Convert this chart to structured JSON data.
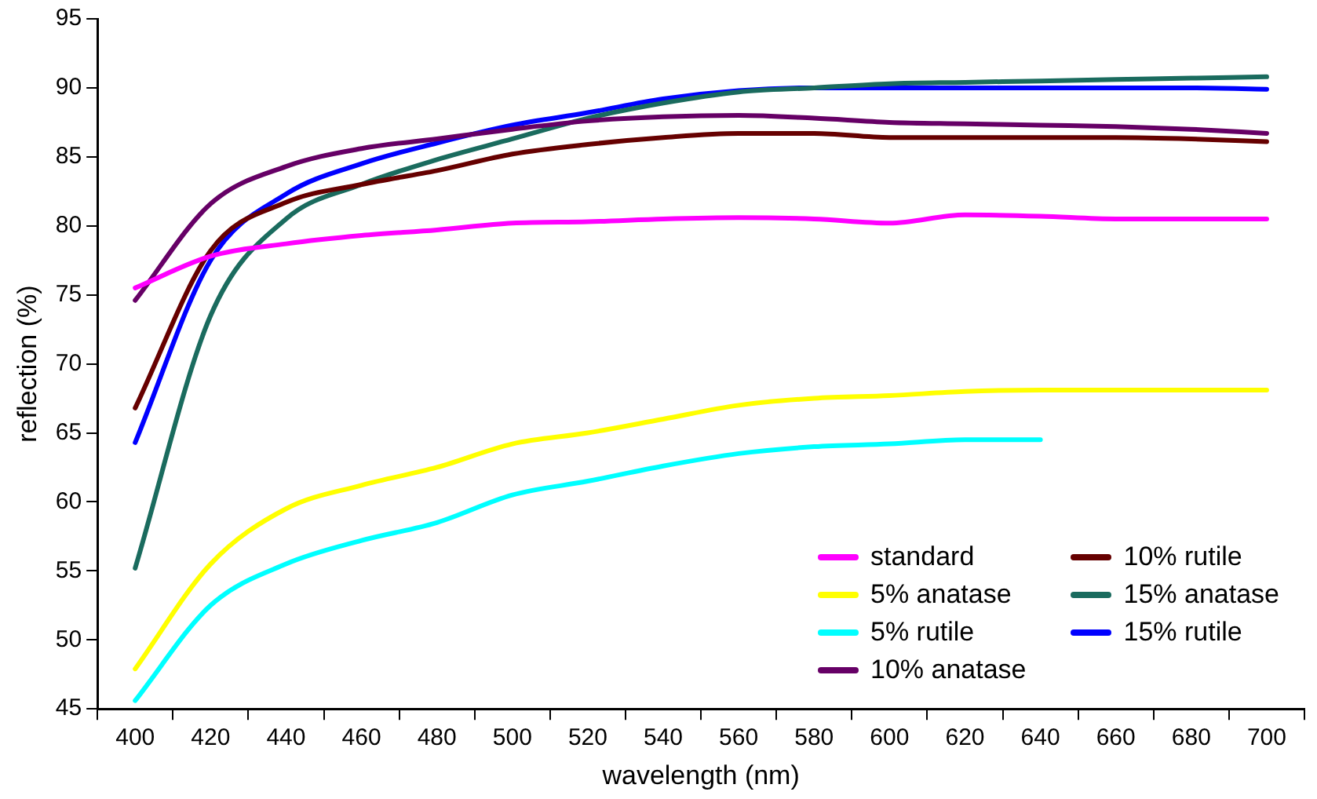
{
  "chart_data": {
    "type": "line",
    "xlabel": "wavelength (nm)",
    "ylabel": "reflection (%)",
    "categories": [
      "400",
      "420",
      "440",
      "460",
      "480",
      "500",
      "520",
      "540",
      "560",
      "580",
      "600",
      "620",
      "640",
      "660",
      "680",
      "700"
    ],
    "ylim": [
      45,
      95
    ],
    "yticks": [
      45,
      50,
      55,
      60,
      65,
      70,
      75,
      80,
      85,
      90,
      95
    ],
    "grid": false,
    "legend": "bottom right",
    "marker": "none",
    "line_style": "solid",
    "series": [
      {
        "name": "standard",
        "color": "#ff00ff",
        "values": [
          75.5,
          77.8,
          78.7,
          79.3,
          79.7,
          80.2,
          80.3,
          80.5,
          80.6,
          80.5,
          80.2,
          80.8,
          80.7,
          80.5,
          80.5,
          80.5
        ]
      },
      {
        "name": "5% anatase",
        "color": "#ffff00",
        "values": [
          47.9,
          55.5,
          59.5,
          61.2,
          62.5,
          64.2,
          65,
          66,
          67,
          67.5,
          67.7,
          68,
          68.1,
          68.1,
          68.1,
          68.1
        ]
      },
      {
        "name": "5% rutile",
        "color": "#00ffff",
        "values": [
          45.6,
          52.5,
          55.5,
          57.2,
          58.5,
          60.5,
          61.5,
          62.6,
          63.5,
          64,
          64.2,
          64.5,
          64.5,
          null,
          null,
          null
        ]
      },
      {
        "name": "10% anatase",
        "color": "#660066",
        "values": [
          74.6,
          81.6,
          84.3,
          85.6,
          86.3,
          87,
          87.6,
          87.9,
          88,
          87.8,
          87.5,
          87.4,
          87.3,
          87.2,
          87,
          86.7
        ]
      },
      {
        "name": "10% rutile",
        "color": "#660000",
        "values": [
          66.8,
          78.2,
          81.7,
          83,
          84,
          85.2,
          85.9,
          86.4,
          86.7,
          86.7,
          86.4,
          86.4,
          86.4,
          86.4,
          86.3,
          86.1
        ]
      },
      {
        "name": "15% anatase",
        "color": "#1a6b5e",
        "values": [
          55.2,
          73.5,
          80.5,
          83,
          84.8,
          86.3,
          87.8,
          88.9,
          89.7,
          90,
          90.3,
          90.4,
          90.5,
          90.6,
          90.7,
          90.8
        ]
      },
      {
        "name": "15% rutile",
        "color": "#0000ff",
        "values": [
          64.3,
          77.5,
          82.3,
          84.5,
          86,
          87.3,
          88.2,
          89.2,
          89.8,
          90,
          90,
          90,
          90,
          90,
          90,
          89.9
        ]
      }
    ]
  }
}
